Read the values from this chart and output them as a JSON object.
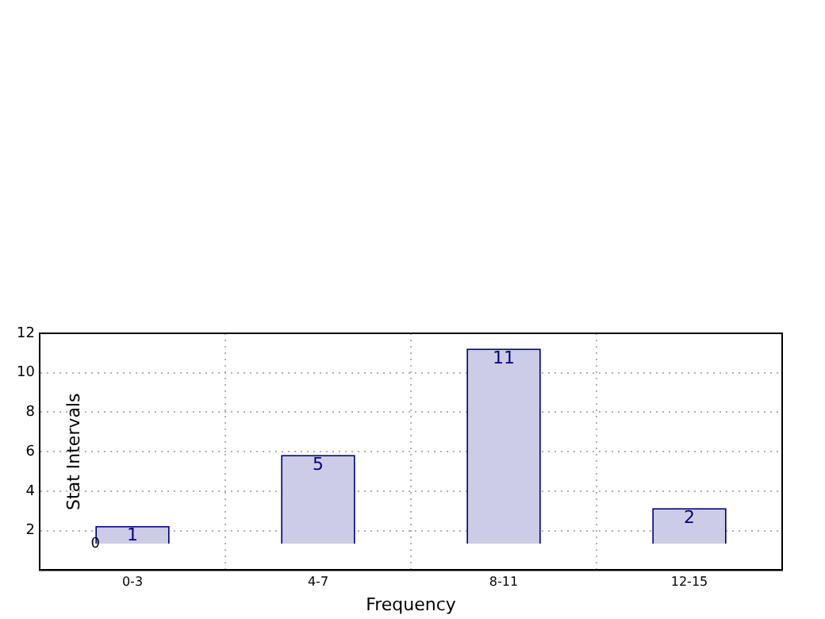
{
  "chart_data": {
    "type": "bar",
    "xlabel": "Frequency",
    "ylabel": "Stat Intervals",
    "categories": [
      "0-3",
      "4-7",
      "8-11",
      "12-15"
    ],
    "series": [
      {
        "color": "#ccccE6",
        "values": [
          1,
          5,
          11,
          2
        ],
        "axis": "y2"
      }
    ],
    "ylim": [
      0,
      12
    ],
    "yticks": [
      2,
      4,
      6,
      8,
      10,
      12
    ],
    "annotations": [
      "0"
    ],
    "data_labels": true,
    "grid": true,
    "legend": false
  }
}
